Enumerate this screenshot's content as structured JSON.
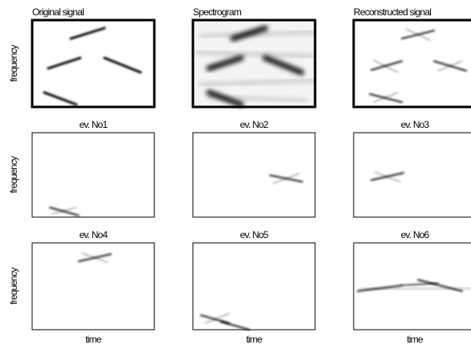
{
  "figure": {
    "y_label": "frequency",
    "x_label": "time",
    "panels": [
      {
        "title": "Original signal"
      },
      {
        "title": "Spectrogram"
      },
      {
        "title": "Reconstructed signal"
      },
      {
        "title": "ev. No1"
      },
      {
        "title": "ev. No2"
      },
      {
        "title": "ev. No3"
      },
      {
        "title": "ev. No4"
      },
      {
        "title": "ev. No5"
      },
      {
        "title": "ev. No6"
      }
    ]
  }
}
